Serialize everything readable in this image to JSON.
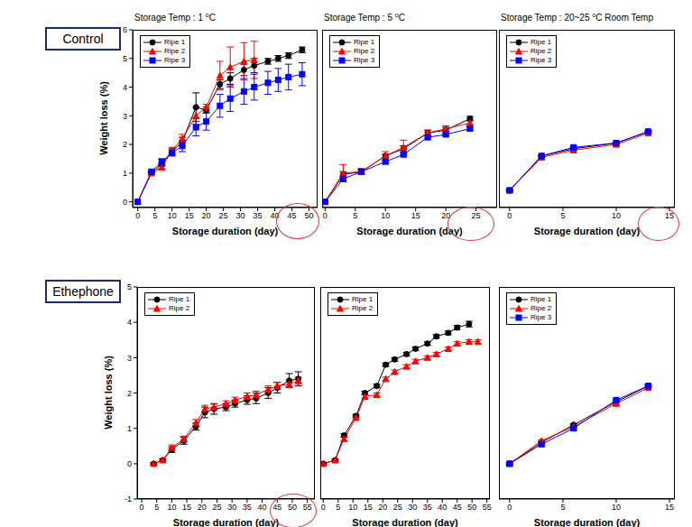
{
  "row_labels": [
    "Control",
    "Ethephone"
  ],
  "chart_data": [
    {
      "type": "line",
      "title": "Storage Temp : 1 ⁰C",
      "x_label": "Storage duration (day)",
      "y_label": "Weight loss (%)",
      "xlim": [
        -1.5,
        52.5
      ],
      "xticks": [
        0,
        5,
        10,
        15,
        20,
        25,
        30,
        35,
        40,
        45,
        50
      ],
      "ylim": [
        -0.2,
        6
      ],
      "yticks": [
        0,
        1,
        2,
        3,
        4,
        5,
        6
      ],
      "legend": "upper left",
      "grid": false,
      "series": [
        {
          "name": "Ripe 1",
          "color": "#000000",
          "marker": "circle",
          "x": [
            0,
            4,
            7,
            10,
            13,
            17,
            20,
            24,
            27,
            31,
            34,
            38,
            41,
            44,
            48
          ],
          "values": [
            0,
            1.02,
            1.3,
            1.75,
            2.1,
            3.3,
            3.2,
            4.1,
            4.3,
            4.6,
            4.75,
            4.9,
            5.0,
            5.1,
            5.3
          ],
          "errors": [
            0,
            0.03,
            0.05,
            0.1,
            0.15,
            0.5,
            0.1,
            0.15,
            0.2,
            0.2,
            0.25,
            0.1,
            0.1,
            0.1,
            0.1
          ]
        },
        {
          "name": "Ripe 2",
          "color": "#ff0000",
          "marker": "triangle",
          "x": [
            0,
            4,
            7,
            10,
            13,
            17,
            20,
            24,
            27,
            31,
            34
          ],
          "values": [
            0,
            1.0,
            1.2,
            1.8,
            2.2,
            3.0,
            3.3,
            4.4,
            4.7,
            4.9,
            4.95
          ],
          "errors": [
            0,
            0.03,
            0.05,
            0.1,
            0.15,
            0.3,
            0.1,
            0.5,
            0.7,
            0.65,
            0.65
          ]
        },
        {
          "name": "Ripe 3",
          "color": "#0000ff",
          "marker": "square",
          "x": [
            0,
            4,
            7,
            10,
            13,
            17,
            20,
            24,
            27,
            31,
            34,
            38,
            41,
            44,
            48
          ],
          "values": [
            0,
            1.05,
            1.4,
            1.7,
            1.95,
            2.6,
            2.8,
            3.35,
            3.6,
            3.85,
            4.0,
            4.15,
            4.25,
            4.35,
            4.45
          ],
          "errors": [
            0,
            0.03,
            0.1,
            0.1,
            0.2,
            0.3,
            0.3,
            0.4,
            0.45,
            0.45,
            0.45,
            0.4,
            0.4,
            0.45,
            0.4
          ]
        }
      ]
    },
    {
      "type": "line",
      "title": "Storage Temp : 5 ⁰C",
      "x_label": "Storage duration (day)",
      "xlim": [
        -0.5,
        28.5
      ],
      "xticks": [
        0,
        5,
        10,
        15,
        20,
        25
      ],
      "ylim": [
        -0.2,
        6
      ],
      "yticks": [
        0,
        1,
        2,
        3,
        4,
        5,
        6
      ],
      "tick_labels": "x",
      "legend": "upper left",
      "grid": false,
      "series": [
        {
          "name": "Ripe 1",
          "color": "#000000",
          "marker": "circle",
          "x": [
            0,
            3,
            6,
            10,
            13,
            17,
            20,
            24
          ],
          "values": [
            0,
            0.95,
            1.05,
            1.6,
            1.85,
            2.4,
            2.5,
            2.9
          ],
          "errors": [
            0,
            0.1,
            0.1,
            0.05,
            0.1,
            0.1,
            0.1,
            0.08
          ]
        },
        {
          "name": "Ripe 2",
          "color": "#ff0000",
          "marker": "triangle",
          "x": [
            0,
            3,
            6,
            10,
            13,
            17,
            20,
            24
          ],
          "values": [
            0,
            1.0,
            1.05,
            1.6,
            1.9,
            2.4,
            2.55,
            2.75
          ],
          "errors": [
            0,
            0.3,
            0.1,
            0.15,
            0.25,
            0.1,
            0.1,
            0.1
          ]
        },
        {
          "name": "Ripe 3",
          "color": "#0000ff",
          "marker": "square",
          "x": [
            0,
            3,
            6,
            10,
            13,
            17,
            20,
            24
          ],
          "values": [
            0,
            0.8,
            1.05,
            1.4,
            1.65,
            2.25,
            2.35,
            2.55
          ],
          "errors": [
            0,
            0.1,
            0.05,
            0.05,
            0.05,
            0.05,
            0.05,
            0.05
          ]
        }
      ]
    },
    {
      "type": "line",
      "title": "Storage Temp : 20~25 ⁰C Room Temp",
      "x_label": "Storage duration (day)",
      "xlim": [
        -1,
        15.5
      ],
      "xticks": [
        0,
        5,
        10,
        15
      ],
      "ylim": [
        -0.2,
        6
      ],
      "yticks": [
        0,
        1,
        2,
        3,
        4,
        5,
        6
      ],
      "tick_labels": "x",
      "legend": "upper left",
      "grid": false,
      "series": [
        {
          "name": "Ripe 1",
          "color": "#000000",
          "marker": "circle",
          "x": [
            0,
            3,
            6,
            10,
            13
          ],
          "values": [
            0.4,
            1.6,
            1.85,
            2.05,
            2.45
          ],
          "errors": [
            0.03,
            0.03,
            0.03,
            0.03,
            0.03
          ]
        },
        {
          "name": "Ripe 2",
          "color": "#ff0000",
          "marker": "triangle",
          "x": [
            0,
            3,
            6,
            10,
            13
          ],
          "values": [
            0.4,
            1.55,
            1.8,
            2.0,
            2.4
          ],
          "errors": [
            0.03,
            0.03,
            0.03,
            0.03,
            0.03
          ]
        },
        {
          "name": "Ripe 3",
          "color": "#0000ff",
          "marker": "square",
          "x": [
            0,
            3,
            6,
            10,
            13
          ],
          "values": [
            0.4,
            1.6,
            1.9,
            2.05,
            2.45
          ],
          "errors": [
            0.03,
            0.03,
            0.03,
            0.03,
            0.03
          ]
        }
      ]
    },
    {
      "type": "line",
      "x_label": "Storage duration (day)",
      "y_label": "Weight loss (%)",
      "xlim": [
        -1.5,
        57.5
      ],
      "xticks": [
        0,
        5,
        10,
        15,
        20,
        25,
        30,
        35,
        40,
        45,
        50,
        55
      ],
      "ylim": [
        -1,
        5
      ],
      "yticks": [
        -1,
        0,
        1,
        2,
        3,
        4,
        5
      ],
      "legend": "upper left",
      "grid": false,
      "series": [
        {
          "name": "Ripe 1",
          "color": "#000000",
          "marker": "circle",
          "x": [
            4,
            7,
            10,
            14,
            18,
            21,
            24,
            28,
            31,
            35,
            38,
            42,
            45,
            49,
            52
          ],
          "values": [
            0,
            0.1,
            0.4,
            0.65,
            1.05,
            1.45,
            1.55,
            1.6,
            1.7,
            1.8,
            1.85,
            2.0,
            2.15,
            2.35,
            2.4
          ],
          "errors": [
            0.03,
            0.03,
            0.08,
            0.1,
            0.1,
            0.15,
            0.15,
            0.1,
            0.1,
            0.12,
            0.15,
            0.15,
            0.15,
            0.2,
            0.2
          ]
        },
        {
          "name": "Ripe 2",
          "color": "#ff0000",
          "marker": "triangle",
          "x": [
            4,
            7,
            10,
            14,
            18,
            21,
            24,
            28,
            31,
            35,
            38,
            42,
            45,
            49,
            52
          ],
          "values": [
            0,
            0.1,
            0.45,
            0.7,
            1.15,
            1.55,
            1.6,
            1.7,
            1.8,
            1.9,
            1.95,
            2.1,
            2.2,
            2.25,
            2.35
          ],
          "errors": [
            0.03,
            0.03,
            0.08,
            0.08,
            0.1,
            0.1,
            0.08,
            0.08,
            0.08,
            0.1,
            0.1,
            0.1,
            0.1,
            0.1,
            0.1
          ]
        }
      ]
    },
    {
      "type": "line",
      "x_label": "Storage duration (day)",
      "xlim": [
        -1,
        56
      ],
      "xticks": [
        0,
        5,
        10,
        15,
        20,
        25,
        30,
        35,
        40,
        45,
        50,
        55
      ],
      "ylim": [
        -1,
        5
      ],
      "yticks": [
        -1,
        0,
        1,
        2,
        3,
        4,
        5
      ],
      "tick_labels": "x",
      "legend": "upper left",
      "grid": false,
      "series": [
        {
          "name": "Ripe 1",
          "color": "#000000",
          "marker": "circle",
          "x": [
            0,
            4,
            7,
            11,
            14,
            18,
            21,
            24,
            28,
            31,
            35,
            38,
            42,
            45,
            49
          ],
          "values": [
            0,
            0.1,
            0.8,
            1.35,
            2.0,
            2.2,
            2.8,
            2.95,
            3.1,
            3.25,
            3.4,
            3.6,
            3.7,
            3.85,
            3.95
          ],
          "errors": [
            0.02,
            0.03,
            0.05,
            0.05,
            0.05,
            0.05,
            0.05,
            0.05,
            0.05,
            0.05,
            0.05,
            0.05,
            0.05,
            0.06,
            0.08
          ]
        },
        {
          "name": "Ripe 2",
          "color": "#ff0000",
          "marker": "triangle",
          "x": [
            0,
            4,
            7,
            11,
            14,
            18,
            21,
            24,
            28,
            31,
            35,
            38,
            42,
            45,
            49,
            52
          ],
          "values": [
            0,
            0.1,
            0.7,
            1.3,
            1.9,
            1.95,
            2.4,
            2.6,
            2.75,
            2.9,
            3.0,
            3.1,
            3.25,
            3.4,
            3.45,
            3.45
          ],
          "errors": [
            0.02,
            0.03,
            0.05,
            0.05,
            0.05,
            0.05,
            0.05,
            0.05,
            0.05,
            0.05,
            0.05,
            0.05,
            0.05,
            0.05,
            0.06,
            0.06
          ]
        }
      ]
    },
    {
      "type": "line",
      "x_label": "Storage duration (day)",
      "xlim": [
        -1,
        15.5
      ],
      "xticks": [
        0,
        5,
        10,
        15
      ],
      "ylim": [
        -1,
        5
      ],
      "yticks": [
        -1,
        0,
        1,
        2,
        3,
        4,
        5
      ],
      "tick_labels": "x",
      "legend": "upper left",
      "grid": false,
      "series": [
        {
          "name": "Ripe 1",
          "color": "#000000",
          "marker": "circle",
          "x": [
            0,
            3,
            6,
            10,
            13
          ],
          "values": [
            0,
            0.6,
            1.1,
            1.75,
            2.2
          ],
          "errors": [
            0.03,
            0.03,
            0.03,
            0.03,
            0.03
          ]
        },
        {
          "name": "Ripe 2",
          "color": "#ff0000",
          "marker": "triangle",
          "x": [
            0,
            3,
            6,
            10,
            13
          ],
          "values": [
            0,
            0.65,
            1.05,
            1.7,
            2.15
          ],
          "errors": [
            0.03,
            0.03,
            0.03,
            0.03,
            0.03
          ]
        },
        {
          "name": "Ripe 3",
          "color": "#0000ff",
          "marker": "square",
          "x": [
            0,
            3,
            6,
            10,
            13
          ],
          "values": [
            0,
            0.55,
            1.0,
            1.8,
            2.2
          ],
          "errors": [
            0.03,
            0.03,
            0.03,
            0.03,
            0.03
          ]
        }
      ]
    }
  ]
}
